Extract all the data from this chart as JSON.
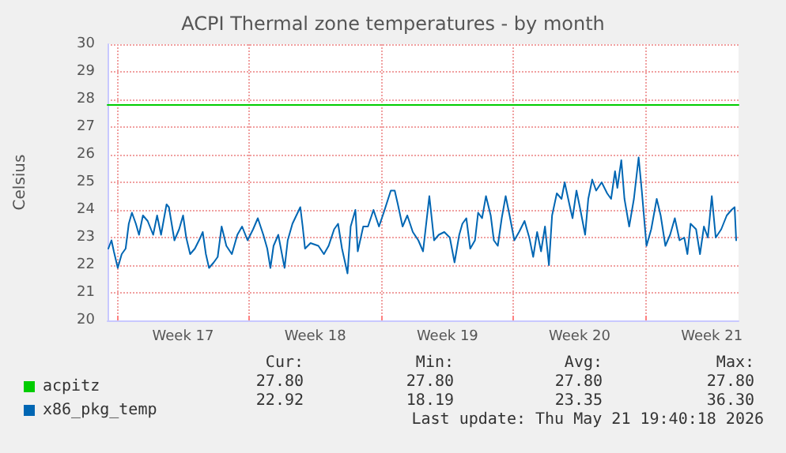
{
  "chart_data": {
    "type": "line",
    "title": "ACPI Thermal zone temperatures - by month",
    "ylabel": "Celsius",
    "xlim": [
      "2026-04-19T12:00",
      "2026-05-22T22:00"
    ],
    "xticks": [
      {
        "value": "2026-04-20",
        "label": null
      },
      {
        "value": "2026-04-23T12:00",
        "label": "Week 17"
      },
      {
        "value": "2026-04-27",
        "label": null
      },
      {
        "value": "2026-04-30T12:00",
        "label": "Week 18"
      },
      {
        "value": "2026-05-04",
        "label": null
      },
      {
        "value": "2026-05-07T12:00",
        "label": "Week 19"
      },
      {
        "value": "2026-05-11",
        "label": null
      },
      {
        "value": "2026-05-14T12:00",
        "label": "Week 20"
      },
      {
        "value": "2026-05-18",
        "label": null
      },
      {
        "value": "2026-05-21T12:00",
        "label": "Week 21"
      }
    ],
    "ylim": [
      20,
      30
    ],
    "yticks": [
      20,
      21,
      22,
      23,
      24,
      25,
      26,
      27,
      28,
      29,
      30
    ],
    "grid": true,
    "legend": "bottom left",
    "marker": "none",
    "line_style": "solid",
    "series": [
      {
        "name": "acpitz",
        "color": "#00cc00",
        "x": [
          "2026-04-19T12:00",
          "2026-05-22T22:00"
        ],
        "values": [
          27.8,
          27.8
        ]
      },
      {
        "name": "x86_pkg_temp",
        "color": "#0066b3",
        "x": [
          "2026-04-19T13:00",
          "2026-04-19T17:00",
          "2026-04-19T20:00",
          "2026-04-20T01:00",
          "2026-04-20T06:00",
          "2026-04-20T11:00",
          "2026-04-20T15:00",
          "2026-04-20T19:00",
          "2026-04-21T00:00",
          "2026-04-21T04:00",
          "2026-04-21T09:00",
          "2026-04-21T15:00",
          "2026-04-21T22:00",
          "2026-04-22T03:00",
          "2026-04-22T08:00",
          "2026-04-22T15:00",
          "2026-04-22T18:00",
          "2026-04-23T01:00",
          "2026-04-23T07:00",
          "2026-04-23T12:00",
          "2026-04-23T16:00",
          "2026-04-23T21:00",
          "2026-04-24T03:00",
          "2026-04-24T10:00",
          "2026-04-24T13:00",
          "2026-04-24T17:00",
          "2026-04-24T21:00",
          "2026-04-25T03:00",
          "2026-04-25T08:00",
          "2026-04-25T13:00",
          "2026-04-25T19:00",
          "2026-04-26T02:00",
          "2026-04-26T09:00",
          "2026-04-26T15:00",
          "2026-04-26T22:00",
          "2026-04-27T05:00",
          "2026-04-27T11:00",
          "2026-04-27T18:00",
          "2026-04-27T23:00",
          "2026-04-28T03:00",
          "2026-04-28T07:00",
          "2026-04-28T13:00",
          "2026-04-28T21:00",
          "2026-04-29T01:00",
          "2026-04-29T07:00",
          "2026-04-29T12:00",
          "2026-04-29T17:00",
          "2026-04-29T20:00",
          "2026-04-29T23:00",
          "2026-04-30T06:00",
          "2026-04-30T16:00",
          "2026-04-30T23:00",
          "2026-05-01T05:00",
          "2026-05-01T12:00",
          "2026-05-01T17:00",
          "2026-05-01T22:00",
          "2026-05-02T05:00",
          "2026-05-02T09:00",
          "2026-05-02T15:00",
          "2026-05-02T18:00",
          "2026-05-03T01:00",
          "2026-05-03T07:00",
          "2026-05-03T14:00",
          "2026-05-03T21:00",
          "2026-05-04T03:00",
          "2026-05-04T12:00",
          "2026-05-04T17:00",
          "2026-05-04T21:00",
          "2026-05-05T03:00",
          "2026-05-05T09:00",
          "2026-05-05T16:00",
          "2026-05-05T23:00",
          "2026-05-06T05:00",
          "2026-05-06T13:00",
          "2026-05-06T19:00",
          "2026-05-07T01:00",
          "2026-05-07T08:00",
          "2026-05-07T15:00",
          "2026-05-07T21:00",
          "2026-05-08T03:00",
          "2026-05-08T07:00",
          "2026-05-08T12:00",
          "2026-05-08T17:00",
          "2026-05-08T23:00",
          "2026-05-09T03:00",
          "2026-05-09T08:00",
          "2026-05-09T13:00",
          "2026-05-09T19:00",
          "2026-05-09T23:00",
          "2026-05-10T04:00",
          "2026-05-10T09:00",
          "2026-05-10T14:00",
          "2026-05-10T19:00",
          "2026-05-11T01:00",
          "2026-05-11T07:00",
          "2026-05-11T14:00",
          "2026-05-11T20:00",
          "2026-05-12T01:00",
          "2026-05-12T06:00",
          "2026-05-12T11:00",
          "2026-05-12T16:00",
          "2026-05-12T21:00",
          "2026-05-13T01:00",
          "2026-05-13T07:00",
          "2026-05-13T13:00",
          "2026-05-13T17:00",
          "2026-05-13T23:00",
          "2026-05-14T03:00",
          "2026-05-14T08:00",
          "2026-05-14T13:00",
          "2026-05-14T19:00",
          "2026-05-14T23:00",
          "2026-05-15T04:00",
          "2026-05-15T09:00",
          "2026-05-15T16:00",
          "2026-05-15T23:00",
          "2026-05-16T04:00",
          "2026-05-16T09:00",
          "2026-05-16T12:00",
          "2026-05-16T17:00",
          "2026-05-16T21:00",
          "2026-05-17T03:00",
          "2026-05-17T09:00",
          "2026-05-17T15:00",
          "2026-05-17T19:00",
          "2026-05-18T01:00",
          "2026-05-18T07:00",
          "2026-05-18T14:00",
          "2026-05-18T19:00",
          "2026-05-19T01:00",
          "2026-05-19T07:00",
          "2026-05-19T13:00",
          "2026-05-19T19:00",
          "2026-05-20T01:00",
          "2026-05-20T05:00",
          "2026-05-20T09:00",
          "2026-05-20T16:00",
          "2026-05-20T21:00",
          "2026-05-21T02:00",
          "2026-05-21T07:00",
          "2026-05-21T12:00",
          "2026-05-21T17:00",
          "2026-05-22T00:00",
          "2026-05-22T07:00",
          "2026-05-22T13:00",
          "2026-05-22T17:00",
          "2026-05-22T19:00"
        ],
        "values": [
          22.6,
          22.9,
          22.5,
          21.9,
          22.4,
          22.6,
          23.5,
          23.9,
          23.5,
          23.1,
          23.8,
          23.6,
          23.1,
          23.8,
          23.1,
          24.2,
          24.1,
          22.9,
          23.3,
          23.8,
          23.0,
          22.4,
          22.6,
          23.0,
          23.2,
          22.4,
          21.9,
          22.1,
          22.3,
          23.4,
          22.7,
          22.4,
          23.1,
          23.4,
          22.9,
          23.3,
          23.7,
          23.1,
          22.6,
          21.9,
          22.7,
          23.1,
          21.9,
          22.9,
          23.5,
          23.8,
          24.1,
          23.4,
          22.6,
          22.8,
          22.7,
          22.4,
          22.7,
          23.3,
          23.5,
          22.6,
          21.7,
          23.4,
          24.0,
          22.5,
          23.4,
          23.4,
          24.0,
          23.4,
          23.9,
          24.7,
          24.7,
          24.2,
          23.4,
          23.8,
          23.2,
          22.9,
          22.5,
          24.5,
          22.9,
          23.1,
          23.2,
          23.0,
          22.1,
          23.1,
          23.5,
          23.7,
          22.6,
          22.9,
          23.9,
          23.7,
          24.5,
          23.8,
          22.9,
          22.7,
          23.7,
          24.5,
          23.8,
          22.9,
          23.2,
          23.6,
          23.0,
          22.3,
          23.2,
          22.5,
          23.4,
          22.0,
          23.8,
          24.6,
          24.4,
          25.0,
          24.2,
          23.7,
          24.7,
          24.0,
          23.1,
          24.4,
          25.1,
          24.7,
          25.0,
          24.6,
          24.4,
          25.4,
          24.8,
          25.8,
          24.4,
          23.4,
          24.4,
          25.9,
          24.7,
          22.7,
          23.3,
          24.4,
          23.8,
          22.7,
          23.1,
          23.7,
          22.9,
          23.0,
          22.4,
          23.5,
          23.3,
          22.4,
          23.4,
          23.0,
          24.5,
          23.0,
          23.3,
          23.8,
          24.0,
          24.1,
          22.9
        ]
      }
    ],
    "annotations": [
      "Cur:",
      "Min:",
      "Avg:",
      "Max:",
      "27.80",
      "27.80",
      "27.80",
      "27.80",
      "22.92",
      "18.19",
      "23.35",
      "36.30",
      "Last update: Thu May 21 19:40:18 2026"
    ]
  }
}
